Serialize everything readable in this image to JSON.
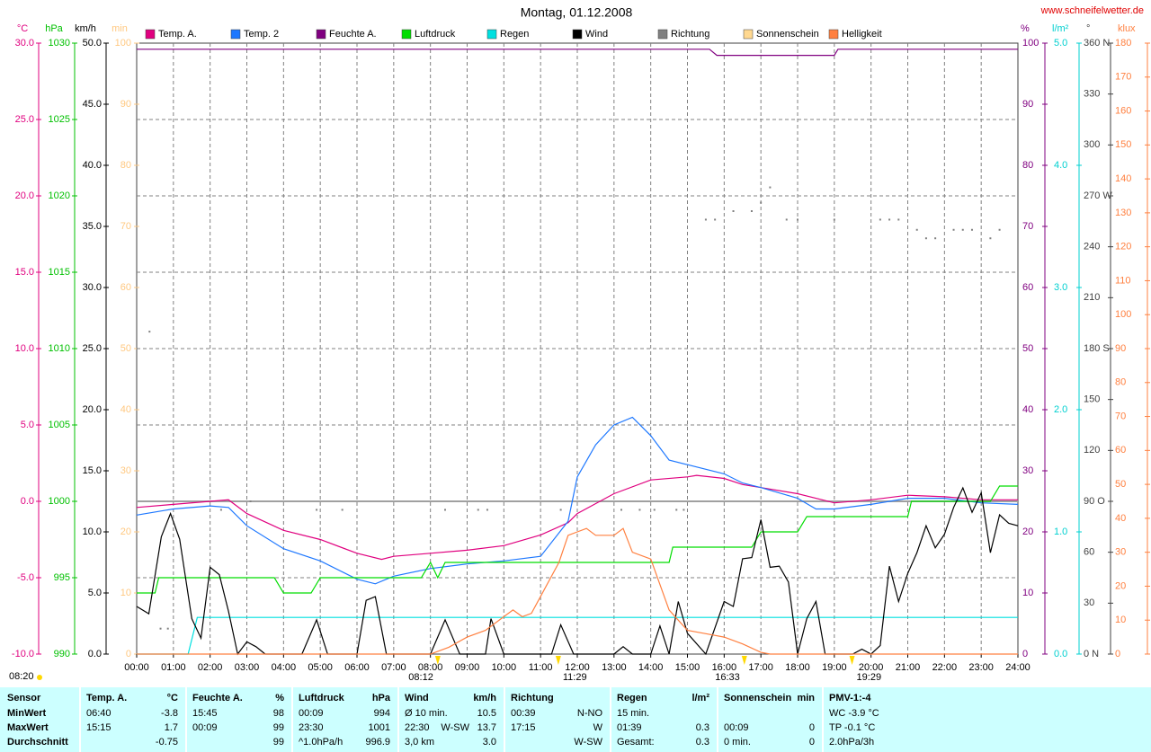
{
  "header": {
    "title": "Montag, 01.12.2008",
    "website": "www.schneifelwetter.de"
  },
  "chart_data": {
    "type": "line",
    "grid": true,
    "xlim": [
      0,
      24
    ],
    "xticks": [
      {
        "value": 0,
        "label": "00:00"
      },
      {
        "value": 1,
        "label": "01:00"
      },
      {
        "value": 2,
        "label": "02:00"
      },
      {
        "value": 3,
        "label": "03:00"
      },
      {
        "value": 4,
        "label": "04:00"
      },
      {
        "value": 5,
        "label": "05:00"
      },
      {
        "value": 6,
        "label": "06:00"
      },
      {
        "value": 7,
        "label": "07:00"
      },
      {
        "value": 8,
        "label": "08:00"
      },
      {
        "value": 9,
        "label": "09:00"
      },
      {
        "value": 10,
        "label": "10:00"
      },
      {
        "value": 11,
        "label": "11:00"
      },
      {
        "value": 12,
        "label": "12:00"
      },
      {
        "value": 13,
        "label": "13:00"
      },
      {
        "value": 14,
        "label": "14:00"
      },
      {
        "value": 15,
        "label": "15:00"
      },
      {
        "value": 16,
        "label": "16:00"
      },
      {
        "value": 17,
        "label": "17:00"
      },
      {
        "value": 18,
        "label": "18:00"
      },
      {
        "value": 19,
        "label": "19:00"
      },
      {
        "value": 20,
        "label": "20:00"
      },
      {
        "value": 21,
        "label": "21:00"
      },
      {
        "value": 22,
        "label": "22:00"
      },
      {
        "value": 23,
        "label": "23:00"
      },
      {
        "value": 24,
        "label": "24:00"
      }
    ],
    "axes": [
      {
        "label": "°C",
        "side": "left",
        "color": "#e0007f",
        "lim": [
          -10,
          30
        ],
        "ticks": [
          {
            "value": -10,
            "label": "-10.0"
          },
          {
            "value": -5,
            "label": "-5.0"
          },
          {
            "value": 0,
            "label": "0.0"
          },
          {
            "value": 5,
            "label": "5.0"
          },
          {
            "value": 10,
            "label": "10.0"
          },
          {
            "value": 15,
            "label": "15.0"
          },
          {
            "value": 20,
            "label": "20.0"
          },
          {
            "value": 25,
            "label": "25.0"
          },
          {
            "value": 30,
            "label": "30.0"
          }
        ]
      },
      {
        "label": "hPa",
        "side": "left",
        "color": "#00c000",
        "lim": [
          990,
          1030
        ],
        "ticks": [
          990,
          995,
          1000,
          1005,
          1010,
          1015,
          1020,
          1025,
          1030
        ]
      },
      {
        "label": "km/h",
        "side": "left",
        "color": "#000000",
        "lim": [
          0,
          50
        ],
        "ticks": [
          {
            "value": 0,
            "label": "0.0"
          },
          {
            "value": 5,
            "label": "5.0"
          },
          {
            "value": 10,
            "label": "10.0"
          },
          {
            "value": 15,
            "label": "15.0"
          },
          {
            "value": 20,
            "label": "20.0"
          },
          {
            "value": 25,
            "label": "25.0"
          },
          {
            "value": 30,
            "label": "30.0"
          },
          {
            "value": 35,
            "label": "35.0"
          },
          {
            "value": 40,
            "label": "40.0"
          },
          {
            "value": 45,
            "label": "45.0"
          },
          {
            "value": 50,
            "label": "50.0"
          }
        ]
      },
      {
        "label": "min",
        "side": "left",
        "color": "#ffc880",
        "lim": [
          0,
          100
        ],
        "ticks": [
          0,
          10,
          20,
          30,
          40,
          50,
          60,
          70,
          80,
          90,
          100
        ]
      },
      {
        "label": "%",
        "side": "right",
        "color": "#800080",
        "lim": [
          0,
          100
        ],
        "ticks": [
          0,
          10,
          20,
          30,
          40,
          50,
          60,
          70,
          80,
          90,
          100
        ]
      },
      {
        "label": "l/m²",
        "side": "right",
        "color": "#00d0d0",
        "lim": [
          0,
          5
        ],
        "ticks": [
          {
            "value": 0,
            "label": "0.0"
          },
          {
            "value": 1,
            "label": "1.0"
          },
          {
            "value": 2,
            "label": "2.0"
          },
          {
            "value": 3,
            "label": "3.0"
          },
          {
            "value": 4,
            "label": "4.0"
          },
          {
            "value": 5,
            "label": "5.0"
          }
        ]
      },
      {
        "label": "°",
        "side": "right",
        "color": "#404040",
        "lim": [
          0,
          360
        ],
        "ticks": [
          {
            "value": 0,
            "label": "0 N"
          },
          30,
          60,
          {
            "value": 90,
            "label": "90 O"
          },
          120,
          150,
          {
            "value": 180,
            "label": "180 S"
          },
          210,
          240,
          {
            "value": 270,
            "label": "270 W"
          },
          300,
          330,
          {
            "value": 360,
            "label": "360 N"
          }
        ]
      },
      {
        "label": "klux",
        "side": "right",
        "color": "#ff8040",
        "lim": [
          0,
          180
        ],
        "ticks": [
          0,
          10,
          20,
          30,
          40,
          50,
          60,
          70,
          80,
          90,
          100,
          110,
          120,
          130,
          140,
          150,
          160,
          170,
          180
        ]
      }
    ],
    "series": [
      {
        "name": "Temp. A.",
        "color": "#e0007f",
        "axis": "°C",
        "x": [
          0,
          1,
          2,
          2.5,
          3,
          4,
          5,
          6,
          6.67,
          7,
          8,
          9,
          10,
          11,
          11.75,
          12,
          13,
          14,
          15,
          15.25,
          16,
          16.5,
          17,
          18,
          19,
          20,
          21,
          22,
          23,
          24
        ],
        "values": [
          -0.4,
          -0.2,
          0,
          0.1,
          -0.8,
          -1.9,
          -2.5,
          -3.4,
          -3.8,
          -3.6,
          -3.4,
          -3.2,
          -2.9,
          -2.2,
          -1.4,
          -0.8,
          0.5,
          1.4,
          1.6,
          1.7,
          1.5,
          1.1,
          0.9,
          0.5,
          -0.1,
          0.1,
          0.4,
          0.3,
          0.1,
          0.1
        ]
      },
      {
        "name": "Temp. 2",
        "color": "#1e78ff",
        "axis": "°C",
        "x": [
          0,
          0.75,
          1,
          2,
          2.5,
          3,
          4,
          5,
          6,
          6.5,
          7,
          8,
          9,
          10,
          11,
          11.75,
          12,
          12.5,
          13,
          13.5,
          14,
          14.5,
          15,
          16,
          16.5,
          17,
          18,
          18.5,
          19,
          20,
          21,
          22,
          23,
          24
        ],
        "values": [
          -0.9,
          -0.6,
          -0.5,
          -0.3,
          -0.4,
          -1.6,
          -3.1,
          -3.9,
          -5.1,
          -5.4,
          -4.9,
          -4.4,
          -4.1,
          -3.9,
          -3.6,
          -1.3,
          1.6,
          3.7,
          5.0,
          5.5,
          4.3,
          2.7,
          2.4,
          1.8,
          1.2,
          0.9,
          0.2,
          -0.5,
          -0.5,
          -0.2,
          0.2,
          0.2,
          -0.1,
          -0.2
        ]
      },
      {
        "name": "Feuchte A.",
        "color": "#800080",
        "axis": "%",
        "x": [
          0,
          15.6,
          15.8,
          19,
          19.1,
          24
        ],
        "values": [
          99,
          99,
          98,
          98,
          99,
          99
        ]
      },
      {
        "name": "Luftdruck",
        "color": "#00dd00",
        "axis": "hPa",
        "x": [
          0,
          0.5,
          0.6,
          3.75,
          4,
          4.75,
          5,
          7.75,
          8,
          8.2,
          8.4,
          14.5,
          14.6,
          16.6,
          16.75,
          17,
          18,
          18.25,
          21,
          21.1,
          23.25,
          23.5,
          24
        ],
        "values": [
          994,
          994,
          995,
          995,
          994,
          994,
          995,
          995,
          996,
          995,
          996,
          996,
          997,
          997,
          997,
          998,
          998,
          999,
          999,
          1000,
          1000,
          1001,
          1001
        ]
      },
      {
        "name": "Regen",
        "color": "#00e0e0",
        "axis": "l/m²",
        "x": [
          0,
          1.4,
          1.65,
          24
        ],
        "values": [
          0,
          0,
          0.3,
          0.3
        ]
      },
      {
        "name": "Wind",
        "color": "#000000",
        "axis": "km/h",
        "x": [
          0,
          0.33,
          0.67,
          0.92,
          1.17,
          1.5,
          1.75,
          2,
          2.25,
          2.5,
          2.75,
          3,
          3.25,
          3.5,
          4.5,
          4.9,
          5.2,
          6,
          6.25,
          6.5,
          6.8,
          8,
          8.4,
          8.8,
          9.5,
          9.65,
          10,
          11.3,
          11.55,
          11.9,
          13,
          13.25,
          13.5,
          14,
          14.25,
          14.5,
          14.75,
          15,
          15.5,
          16,
          16.25,
          16.5,
          16.75,
          17,
          17.25,
          17.5,
          17.75,
          18,
          18.25,
          18.5,
          18.75,
          19.5,
          19.75,
          20,
          20.25,
          20.5,
          20.75,
          21,
          21.25,
          21.5,
          21.75,
          22,
          22.25,
          22.5,
          22.75,
          23,
          23.25,
          23.5,
          23.75,
          24
        ],
        "values": [
          3.9,
          3.3,
          9.6,
          11.5,
          9.4,
          2.9,
          1.3,
          7.1,
          6.5,
          3.5,
          0,
          1.0,
          0.6,
          0,
          0,
          2.8,
          0,
          0,
          4.4,
          4.7,
          0,
          0,
          2.8,
          0,
          0,
          2.9,
          0,
          0,
          2.4,
          0,
          0,
          0.6,
          0,
          0,
          2.3,
          0,
          4.3,
          1.7,
          0,
          4.3,
          3.9,
          7.8,
          7.9,
          11.0,
          7.1,
          7.2,
          5.9,
          0,
          2.9,
          4.3,
          0,
          0,
          0.4,
          0,
          0.7,
          7.2,
          4.3,
          6.6,
          8.3,
          10.5,
          8.7,
          9.8,
          12.0,
          13.6,
          11.6,
          13.2,
          8.3,
          11.4,
          10.7,
          10.5
        ]
      },
      {
        "name": "Richtung",
        "color": "#808080",
        "axis": "°",
        "type": "scatter",
        "x": [
          0.35,
          0.65,
          0.85,
          2.3,
          3.1,
          4.9,
          5.6,
          8.4,
          9.3,
          9.55,
          11.55,
          13.2,
          13.7,
          14.1,
          14.7,
          14.9,
          15.5,
          15.75,
          16.25,
          16.75,
          17,
          17.25,
          17.7,
          18,
          19,
          20.25,
          20.5,
          20.75,
          21.25,
          21.5,
          21.75,
          22.25,
          22.5,
          22.75,
          23.25,
          23.5
        ],
        "values": [
          190,
          15,
          15,
          85,
          90,
          85,
          85,
          85,
          85,
          85,
          85,
          85,
          85,
          85,
          85,
          85,
          256,
          256,
          261,
          261,
          266,
          275,
          256,
          256,
          256,
          256,
          256,
          256,
          250,
          245,
          245,
          250,
          250,
          250,
          245,
          250
        ]
      },
      {
        "name": "Sonnenschein",
        "color": "#ffd890",
        "axis": "min"
      },
      {
        "name": "Helligkeit",
        "color": "#ff8040",
        "axis": "klux",
        "x": [
          0,
          8,
          8.5,
          9,
          9.5,
          10,
          10.25,
          10.5,
          10.75,
          11,
          11.5,
          11.75,
          12,
          12.25,
          12.5,
          12.75,
          13,
          13.25,
          13.5,
          14,
          14.5,
          15,
          15.5,
          16,
          16.5,
          17,
          17.25,
          24
        ],
        "values": [
          0,
          0,
          2,
          5,
          7,
          11,
          13,
          11,
          12,
          17,
          27,
          35,
          36,
          37,
          35,
          35,
          35,
          37,
          30,
          28,
          13,
          7,
          6,
          5,
          3,
          0.5,
          0,
          0
        ]
      }
    ],
    "sun_note": "08:20",
    "annotations": [
      {
        "label": "08:12",
        "x": 8.2
      },
      {
        "label": "11:29",
        "x": 11.483
      },
      {
        "label": "16:33",
        "x": 16.55
      },
      {
        "label": "19:29",
        "x": 19.483
      }
    ]
  },
  "table": {
    "header": [
      {
        "l": "Sensor"
      },
      {
        "l": "Temp. A.",
        "r": "°C"
      },
      {
        "l": "Feuchte A.",
        "r": "%"
      },
      {
        "l": "Luftdruck",
        "r": "hPa"
      },
      {
        "l": "Wind",
        "r": "km/h"
      },
      {
        "l": "Richtung"
      },
      {
        "l": "Regen",
        "r": "l/m²"
      },
      {
        "l": "Sonnenschein",
        "r": "min"
      },
      {
        "l": "PMV-1:-4"
      }
    ],
    "rows": [
      [
        {
          "l": "MinWert"
        },
        {
          "l": "06:40",
          "r": "-3.8"
        },
        {
          "l": "15:45",
          "r": "98"
        },
        {
          "l": "00:09",
          "r": "994"
        },
        {
          "l": "Ø 10 min.",
          "r": "10.5"
        },
        {
          "l": "00:39",
          "r": "N-NO"
        },
        {
          "l": "15 min."
        },
        {},
        {
          "l": "WC -3.9 °C"
        }
      ],
      [
        {
          "l": "MaxWert"
        },
        {
          "l": "15:15",
          "r": "1.7"
        },
        {
          "l": "00:09",
          "r": "99"
        },
        {
          "l": "23:30",
          "r": "1001"
        },
        {
          "l": "22:30",
          "m": "W-SW",
          "r": "13.7"
        },
        {
          "l": "17:15",
          "r": "W"
        },
        {
          "l": "01:39",
          "r": "0.3"
        },
        {
          "l": "00:09",
          "r": "0"
        },
        {
          "l": "TP -0.1 °C"
        }
      ],
      [
        {
          "l": "Durchschnitt"
        },
        {
          "r": "-0.75"
        },
        {
          "r": "99"
        },
        {
          "l": "^1.0hPa/h",
          "r": "996.9"
        },
        {
          "l": "3,0 km",
          "r": "3.0"
        },
        {
          "r": "W-SW"
        },
        {
          "l": "Gesamt:",
          "r": "0.3"
        },
        {
          "l": "0 min.",
          "r": "0"
        },
        {
          "l": "2.0hPa/3h"
        }
      ]
    ]
  }
}
